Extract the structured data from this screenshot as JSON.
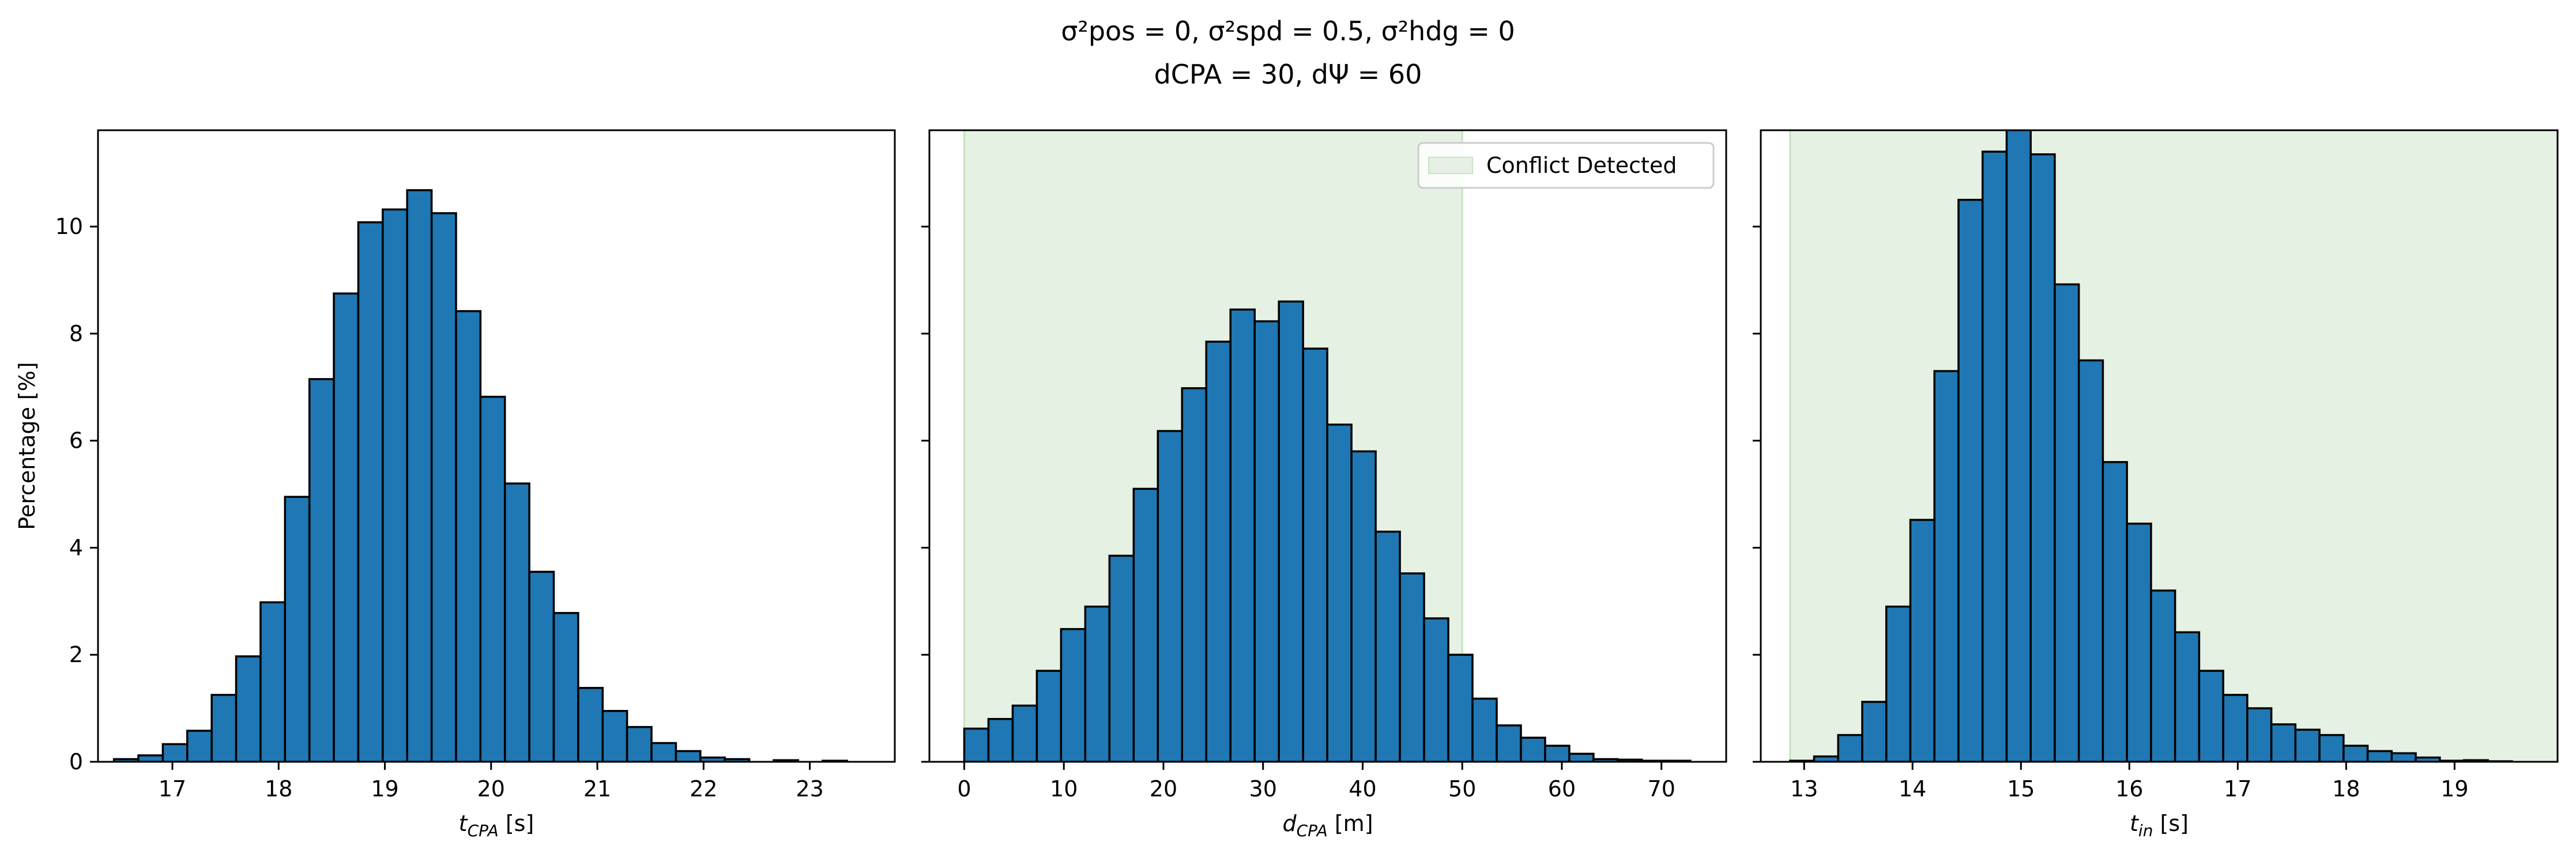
{
  "figure": {
    "title_line1": "σ²pos = 0, σ²spd = 0.5, σ²hdg = 0",
    "title_line2": "dCPA = 30, dΨ = 60"
  },
  "colors": {
    "bar_fill": "#1f77b4",
    "bar_edge": "#000000",
    "conflict_fill": "#e5f1e3",
    "conflict_edge": "#c5e4c0"
  },
  "chart_data": [
    {
      "type": "bar",
      "xlabel": "tCPA [s]",
      "ylabel": "Percentage [%]",
      "xlim": [
        16.3,
        23.8
      ],
      "ylim": [
        0,
        11.8
      ],
      "xticks": [
        17,
        18,
        19,
        20,
        21,
        22,
        23
      ],
      "yticks": [
        0,
        2,
        4,
        6,
        8,
        10
      ],
      "bin_edges": [
        16.45,
        16.68,
        16.91,
        17.14,
        17.37,
        17.6,
        17.83,
        18.06,
        18.29,
        18.52,
        18.75,
        18.98,
        19.21,
        19.44,
        19.67,
        19.9,
        20.13,
        20.36,
        20.59,
        20.82,
        21.05,
        21.28,
        21.51,
        21.74,
        21.97,
        22.2,
        22.43,
        22.66,
        22.89,
        23.12,
        23.35
      ],
      "values": [
        0.05,
        0.12,
        0.33,
        0.58,
        1.25,
        1.97,
        2.98,
        4.95,
        7.15,
        8.75,
        10.08,
        10.32,
        10.68,
        10.25,
        8.42,
        6.82,
        5.2,
        3.55,
        2.78,
        1.38,
        0.95,
        0.65,
        0.35,
        0.2,
        0.08,
        0.05,
        0.0,
        0.03,
        0.0,
        0.02
      ],
      "shaded_region": null,
      "legend": null
    },
    {
      "type": "bar",
      "xlabel": "dCPA [m]",
      "ylabel": "",
      "xlim": [
        -3.5,
        76.5
      ],
      "ylim": [
        0,
        11.8
      ],
      "xticks": [
        0,
        10,
        20,
        30,
        40,
        50,
        60,
        70
      ],
      "yticks": [
        0,
        2,
        4,
        6,
        8,
        10
      ],
      "bin_edges": [
        0.0,
        2.43,
        4.86,
        7.29,
        9.72,
        12.15,
        14.58,
        17.01,
        19.44,
        21.87,
        24.3,
        26.73,
        29.16,
        31.59,
        34.02,
        36.45,
        38.88,
        41.31,
        43.74,
        46.17,
        48.6,
        51.03,
        53.46,
        55.89,
        58.32,
        60.75,
        63.18,
        65.61,
        68.04,
        70.47,
        72.9
      ],
      "values": [
        0.62,
        0.8,
        1.05,
        1.7,
        2.48,
        2.9,
        3.85,
        5.1,
        6.18,
        6.98,
        7.85,
        8.45,
        8.23,
        8.6,
        7.72,
        6.3,
        5.8,
        4.3,
        3.52,
        2.68,
        2.0,
        1.18,
        0.68,
        0.45,
        0.3,
        0.15,
        0.05,
        0.04,
        0.02,
        0.02
      ],
      "shaded_region": [
        0,
        50
      ],
      "legend": {
        "label": "Conflict Detected",
        "position": "upper right"
      }
    },
    {
      "type": "bar",
      "xlabel": "tin [s]",
      "ylabel": "",
      "xlim": [
        12.6,
        19.95
      ],
      "ylim": [
        0,
        11.8
      ],
      "xticks": [
        13,
        14,
        15,
        16,
        17,
        18,
        19
      ],
      "yticks": [
        0,
        2,
        4,
        6,
        8,
        10
      ],
      "bin_edges": [
        12.87,
        13.092,
        13.314,
        13.536,
        13.758,
        13.98,
        14.202,
        14.424,
        14.646,
        14.868,
        15.09,
        15.312,
        15.534,
        15.756,
        15.978,
        16.2,
        16.422,
        16.644,
        16.866,
        17.088,
        17.31,
        17.532,
        17.754,
        17.976,
        18.198,
        18.42,
        18.642,
        18.864,
        19.086,
        19.308,
        19.53
      ],
      "values": [
        0.02,
        0.1,
        0.5,
        1.12,
        2.9,
        4.52,
        7.3,
        10.5,
        11.4,
        11.82,
        11.35,
        8.92,
        7.5,
        5.6,
        4.45,
        3.2,
        2.42,
        1.7,
        1.25,
        1.0,
        0.7,
        0.6,
        0.5,
        0.3,
        0.2,
        0.16,
        0.08,
        0.02,
        0.03,
        0.01
      ],
      "shaded_region": [
        12.87,
        19.95
      ],
      "legend": null
    }
  ]
}
